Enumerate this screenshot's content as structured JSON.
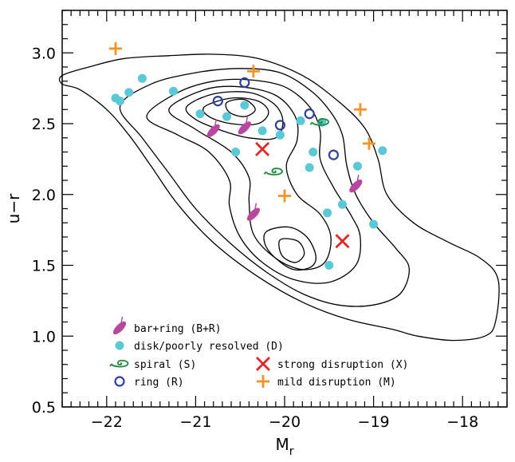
{
  "chart_data": {
    "type": "scatter",
    "xlabel": "M",
    "xlabel_sub": "r",
    "ylabel": "u−r",
    "xlim": [
      -22.5,
      -17.5
    ],
    "ylim": [
      0.5,
      3.3
    ],
    "x_ticks": [
      {
        "value": -22,
        "label": "−22"
      },
      {
        "value": -21,
        "label": "−21"
      },
      {
        "value": -20,
        "label": "−20"
      },
      {
        "value": -19,
        "label": "−19"
      },
      {
        "value": -18,
        "label": "−18"
      }
    ],
    "y_ticks": [
      {
        "value": 0.5,
        "label": "0.5"
      },
      {
        "value": 1.0,
        "label": "1.0"
      },
      {
        "value": 1.5,
        "label": "1.5"
      },
      {
        "value": 2.0,
        "label": "2.0"
      },
      {
        "value": 2.5,
        "label": "2.5"
      },
      {
        "value": 3.0,
        "label": "3.0"
      }
    ],
    "colors": {
      "bar_ring": "#b9479f",
      "disk": "#5bc8d6",
      "spiral": "#1c8a3c",
      "ring": "#2f3f9c",
      "strong": "#e22726",
      "mild": "#f39325",
      "contour": "#000000"
    },
    "contours": [
      [
        [
          -22.5,
          2.84
        ],
        [
          -22.2,
          2.9
        ],
        [
          -21.8,
          2.96
        ],
        [
          -21.3,
          2.98
        ],
        [
          -20.8,
          2.99
        ],
        [
          -20.3,
          2.96
        ],
        [
          -19.8,
          2.84
        ],
        [
          -19.4,
          2.66
        ],
        [
          -19.1,
          2.47
        ],
        [
          -18.95,
          2.25
        ],
        [
          -18.85,
          2.0
        ],
        [
          -18.55,
          1.8
        ],
        [
          -18.15,
          1.66
        ],
        [
          -17.8,
          1.55
        ],
        [
          -17.6,
          1.4
        ],
        [
          -17.63,
          1.1
        ],
        [
          -17.75,
          1.0
        ],
        [
          -18.1,
          0.97
        ],
        [
          -18.5,
          1.0
        ],
        [
          -18.8,
          1.05
        ],
        [
          -19.3,
          1.12
        ],
        [
          -19.8,
          1.24
        ],
        [
          -20.3,
          1.42
        ],
        [
          -20.8,
          1.66
        ],
        [
          -21.2,
          1.93
        ],
        [
          -21.5,
          2.2
        ],
        [
          -21.75,
          2.42
        ],
        [
          -22.0,
          2.6
        ],
        [
          -22.3,
          2.74
        ],
        [
          -22.5,
          2.78
        ]
      ],
      [
        [
          -21.85,
          2.62
        ],
        [
          -21.5,
          2.78
        ],
        [
          -21.0,
          2.86
        ],
        [
          -20.5,
          2.89
        ],
        [
          -20.05,
          2.86
        ],
        [
          -19.7,
          2.73
        ],
        [
          -19.48,
          2.58
        ],
        [
          -19.35,
          2.42
        ],
        [
          -19.3,
          2.2
        ],
        [
          -19.2,
          2.0
        ],
        [
          -19.0,
          1.8
        ],
        [
          -18.75,
          1.62
        ],
        [
          -18.6,
          1.48
        ],
        [
          -18.7,
          1.3
        ],
        [
          -19.0,
          1.22
        ],
        [
          -19.4,
          1.22
        ],
        [
          -19.8,
          1.3
        ],
        [
          -20.2,
          1.45
        ],
        [
          -20.6,
          1.65
        ],
        [
          -21.0,
          1.9
        ],
        [
          -21.3,
          2.15
        ],
        [
          -21.6,
          2.4
        ]
      ],
      [
        [
          -21.55,
          2.55
        ],
        [
          -21.2,
          2.72
        ],
        [
          -20.8,
          2.8
        ],
        [
          -20.4,
          2.81
        ],
        [
          -20.0,
          2.76
        ],
        [
          -19.72,
          2.62
        ],
        [
          -19.6,
          2.45
        ],
        [
          -19.6,
          2.25
        ],
        [
          -19.45,
          2.05
        ],
        [
          -19.25,
          1.85
        ],
        [
          -19.15,
          1.7
        ],
        [
          -19.2,
          1.5
        ],
        [
          -19.5,
          1.38
        ],
        [
          -19.9,
          1.4
        ],
        [
          -20.25,
          1.52
        ],
        [
          -20.5,
          1.7
        ],
        [
          -20.62,
          1.92
        ],
        [
          -20.62,
          2.1
        ],
        [
          -20.85,
          2.3
        ],
        [
          -21.2,
          2.42
        ]
      ],
      [
        [
          -21.3,
          2.6
        ],
        [
          -20.9,
          2.74
        ],
        [
          -20.5,
          2.76
        ],
        [
          -20.1,
          2.7
        ],
        [
          -19.88,
          2.55
        ],
        [
          -19.86,
          2.38
        ],
        [
          -19.98,
          2.2
        ],
        [
          -19.86,
          2.0
        ],
        [
          -19.6,
          1.86
        ],
        [
          -19.48,
          1.7
        ],
        [
          -19.55,
          1.52
        ],
        [
          -19.8,
          1.47
        ],
        [
          -20.1,
          1.55
        ],
        [
          -20.35,
          1.72
        ],
        [
          -20.4,
          1.95
        ],
        [
          -20.4,
          2.12
        ],
        [
          -20.6,
          2.3
        ],
        [
          -21.0,
          2.46
        ]
      ],
      [
        [
          -21.1,
          2.62
        ],
        [
          -20.8,
          2.71
        ],
        [
          -20.4,
          2.72
        ],
        [
          -20.12,
          2.64
        ],
        [
          -20.02,
          2.52
        ],
        [
          -20.1,
          2.4
        ],
        [
          -20.4,
          2.4
        ],
        [
          -20.7,
          2.45
        ],
        [
          -21.0,
          2.53
        ]
      ],
      [
        [
          -20.9,
          2.62
        ],
        [
          -20.6,
          2.68
        ],
        [
          -20.3,
          2.66
        ],
        [
          -20.18,
          2.58
        ],
        [
          -20.3,
          2.5
        ],
        [
          -20.6,
          2.5
        ],
        [
          -20.85,
          2.55
        ]
      ],
      [
        [
          -20.65,
          2.65
        ],
        [
          -20.45,
          2.67
        ],
        [
          -20.33,
          2.6
        ],
        [
          -20.45,
          2.55
        ],
        [
          -20.62,
          2.58
        ]
      ],
      [
        [
          -20.2,
          1.74
        ],
        [
          -19.95,
          1.77
        ],
        [
          -19.75,
          1.7
        ],
        [
          -19.65,
          1.57
        ],
        [
          -19.7,
          1.49
        ],
        [
          -19.9,
          1.47
        ],
        [
          -20.1,
          1.55
        ],
        [
          -20.22,
          1.65
        ]
      ],
      [
        [
          -20.05,
          1.68
        ],
        [
          -19.85,
          1.67
        ],
        [
          -19.78,
          1.58
        ],
        [
          -19.88,
          1.52
        ],
        [
          -20.03,
          1.57
        ]
      ]
    ],
    "series": [
      {
        "name": "bar+ring (B+R)",
        "marker": "bar_ring",
        "points": [
          [
            -20.45,
            2.47
          ],
          [
            -20.8,
            2.45
          ],
          [
            -19.2,
            2.06
          ],
          [
            -20.35,
            1.86
          ]
        ]
      },
      {
        "name": "disk/poorly resolved (D)",
        "marker": "disk",
        "points": [
          [
            -21.9,
            2.68
          ],
          [
            -21.85,
            2.66
          ],
          [
            -21.75,
            2.72
          ],
          [
            -21.6,
            2.82
          ],
          [
            -21.25,
            2.73
          ],
          [
            -20.95,
            2.57
          ],
          [
            -20.65,
            2.55
          ],
          [
            -20.45,
            2.63
          ],
          [
            -20.55,
            2.3
          ],
          [
            -20.25,
            2.45
          ],
          [
            -20.05,
            2.42
          ],
          [
            -19.82,
            2.52
          ],
          [
            -19.68,
            2.3
          ],
          [
            -19.58,
            2.51
          ],
          [
            -19.72,
            2.19
          ],
          [
            -19.18,
            2.2
          ],
          [
            -18.9,
            2.31
          ],
          [
            -19.0,
            1.79
          ],
          [
            -19.35,
            1.93
          ],
          [
            -19.52,
            1.87
          ],
          [
            -19.5,
            1.5
          ]
        ]
      },
      {
        "name": "spiral (S)",
        "marker": "spiral",
        "points": [
          [
            -19.6,
            2.51
          ],
          [
            -20.12,
            2.16
          ]
        ]
      },
      {
        "name": "ring (R)",
        "marker": "ring",
        "points": [
          [
            -20.45,
            2.79
          ],
          [
            -20.75,
            2.66
          ],
          [
            -20.05,
            2.49
          ],
          [
            -19.72,
            2.57
          ],
          [
            -19.45,
            2.28
          ]
        ]
      },
      {
        "name": "strong disruption (X)",
        "marker": "strong",
        "points": [
          [
            -20.25,
            2.32
          ],
          [
            -19.35,
            1.67
          ]
        ]
      },
      {
        "name": "mild disruption (M)",
        "marker": "mild",
        "points": [
          [
            -21.9,
            3.03
          ],
          [
            -20.35,
            2.87
          ],
          [
            -19.15,
            2.6
          ],
          [
            -19.05,
            2.36
          ],
          [
            -20.0,
            1.99
          ]
        ]
      }
    ],
    "legend": [
      {
        "marker": "bar_ring",
        "label": "bar+ring (B+R)"
      },
      {
        "marker": "disk",
        "label": "disk/poorly resolved (D)"
      },
      {
        "marker": "spiral",
        "label": "spiral (S)"
      },
      {
        "marker": "ring",
        "label": "ring (R)"
      },
      {
        "marker": "strong",
        "label": "strong disruption (X)"
      },
      {
        "marker": "mild",
        "label": "mild disruption (M)"
      }
    ],
    "legend_placement": "bottom",
    "grid": false
  }
}
